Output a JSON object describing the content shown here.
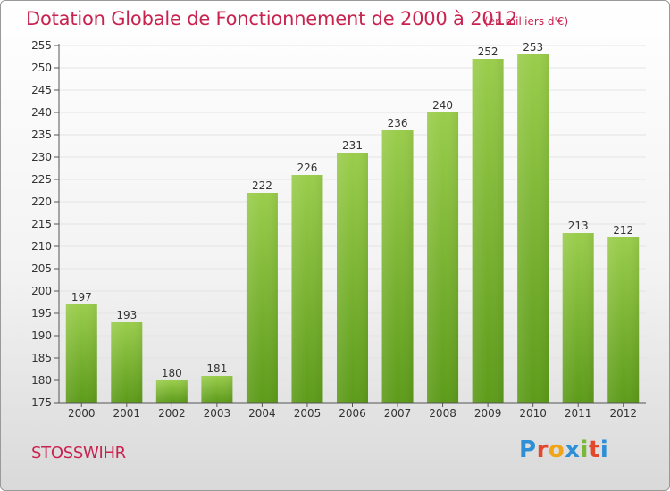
{
  "page": {
    "title": "Dotation Globale de Fonctionnement de 2000 à 2012",
    "subtitle": "(en milliers d'€)",
    "commune": "STOSSWIHR",
    "logo_text": "Proxiti"
  },
  "colors": {
    "title": "#c8234f",
    "bar_light": "#9acd4c",
    "bar_dark": "#5d9b1a",
    "axis": "#555555",
    "grid": "#e4e4e4"
  },
  "chart_data": {
    "type": "bar",
    "title": "Dotation Globale de Fonctionnement de 2000 à 2012",
    "subtitle": "(en milliers d'€)",
    "categories": [
      "2000",
      "2001",
      "2002",
      "2003",
      "2004",
      "2005",
      "2006",
      "2007",
      "2008",
      "2009",
      "2010",
      "2011",
      "2012"
    ],
    "values": [
      197,
      193,
      180,
      181,
      222,
      226,
      231,
      236,
      240,
      252,
      253,
      213,
      212
    ],
    "ylim": [
      175,
      255
    ],
    "yticks": [
      175,
      180,
      185,
      190,
      195,
      200,
      205,
      210,
      215,
      220,
      225,
      230,
      235,
      240,
      245,
      250,
      255
    ],
    "xlabel": "",
    "ylabel": "",
    "grid": true,
    "data_labels": true
  }
}
